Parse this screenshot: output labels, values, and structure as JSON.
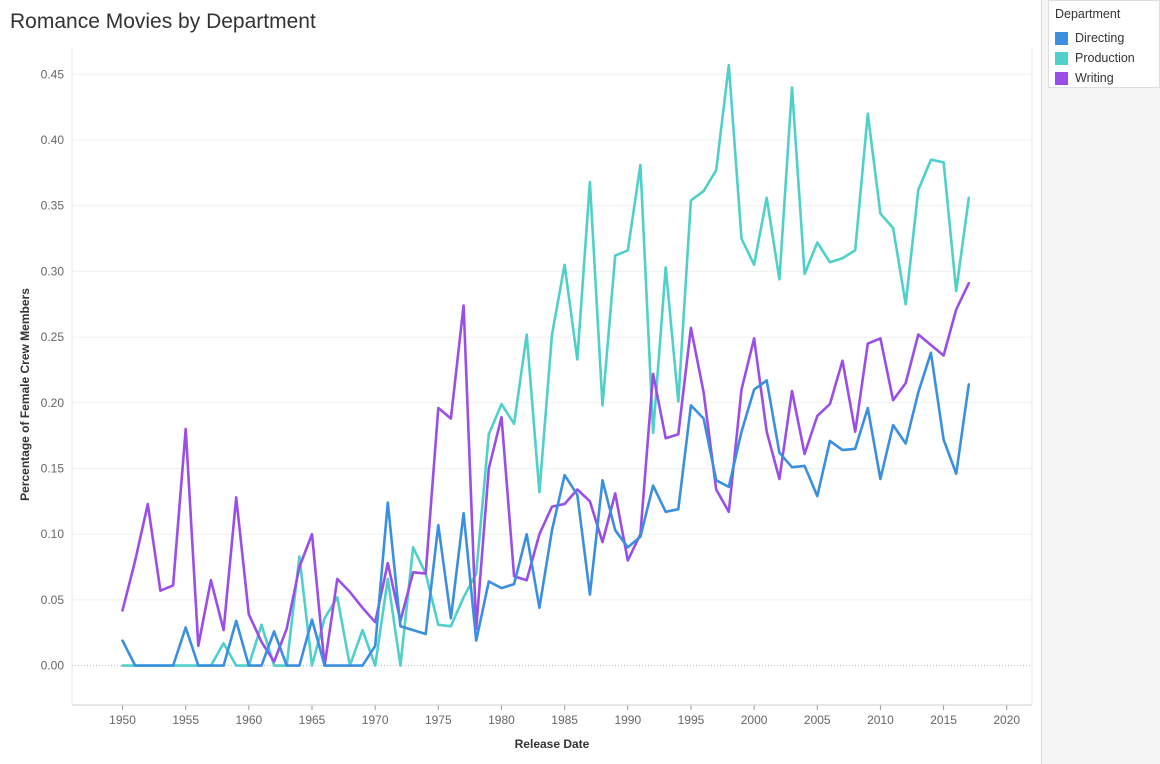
{
  "title": "Romance Movies by Department",
  "legend": {
    "title": "Department",
    "items": [
      {
        "label": "Directing",
        "color": "#3a8fe0"
      },
      {
        "label": "Production",
        "color": "#4fd0c9"
      },
      {
        "label": "Writing",
        "color": "#9b4de8"
      }
    ]
  },
  "chart_data": {
    "type": "line",
    "title": "Romance Movies by Department",
    "xlabel": "Release Date",
    "ylabel": "Percentage of Female Crew Members",
    "xlim": [
      1946,
      2022
    ],
    "ylim": [
      -0.03,
      0.47
    ],
    "x_ticks": [
      "1950",
      "1955",
      "1960",
      "1965",
      "1970",
      "1975",
      "1980",
      "1985",
      "1990",
      "1995",
      "2000",
      "2005",
      "2010",
      "2015",
      "2020"
    ],
    "y_ticks": [
      "0.00",
      "0.05",
      "0.10",
      "0.15",
      "0.20",
      "0.25",
      "0.30",
      "0.35",
      "0.40",
      "0.45"
    ],
    "grid": true,
    "legend_position": "top-right",
    "series": [
      {
        "name": "Directing",
        "color": "#3a8fe0",
        "x": [
          1950,
          1951,
          1952,
          1953,
          1954,
          1955,
          1956,
          1957,
          1958,
          1959,
          1960,
          1961,
          1962,
          1963,
          1964,
          1965,
          1966,
          1967,
          1968,
          1969,
          1970,
          1971,
          1972,
          1973,
          1974,
          1975,
          1976,
          1977,
          1978,
          1979,
          1980,
          1981,
          1982,
          1983,
          1984,
          1985,
          1986,
          1987,
          1988,
          1989,
          1990,
          1991,
          1992,
          1993,
          1994,
          1995,
          1996,
          1997,
          1998,
          1999,
          2000,
          2001,
          2002,
          2003,
          2004,
          2005,
          2006,
          2007,
          2008,
          2009,
          2010,
          2011,
          2012,
          2013,
          2014,
          2015,
          2016,
          2017
        ],
        "values": [
          0.019,
          0.0,
          0.0,
          0.0,
          0.0,
          0.029,
          0.0,
          0.0,
          0.0,
          0.034,
          0.0,
          0.0,
          0.026,
          0.0,
          0.0,
          0.035,
          0.0,
          0.0,
          0.0,
          0.0,
          0.015,
          0.124,
          0.03,
          0.027,
          0.024,
          0.107,
          0.036,
          0.116,
          0.019,
          0.064,
          0.059,
          0.062,
          0.1,
          0.044,
          0.103,
          0.145,
          0.13,
          0.054,
          0.141,
          0.103,
          0.09,
          0.098,
          0.137,
          0.117,
          0.119,
          0.198,
          0.188,
          0.141,
          0.136,
          0.178,
          0.21,
          0.217,
          0.162,
          0.151,
          0.152,
          0.129,
          0.171,
          0.164,
          0.165,
          0.196,
          0.142,
          0.183,
          0.169,
          0.208,
          0.238,
          0.172,
          0.146,
          0.214
        ]
      },
      {
        "name": "Production",
        "color": "#4fd0c9",
        "x": [
          1950,
          1951,
          1952,
          1953,
          1954,
          1955,
          1956,
          1957,
          1958,
          1959,
          1960,
          1961,
          1962,
          1963,
          1964,
          1965,
          1966,
          1967,
          1968,
          1969,
          1970,
          1971,
          1972,
          1973,
          1974,
          1975,
          1976,
          1977,
          1978,
          1979,
          1980,
          1981,
          1982,
          1983,
          1984,
          1985,
          1986,
          1987,
          1988,
          1989,
          1990,
          1991,
          1992,
          1993,
          1994,
          1995,
          1996,
          1997,
          1998,
          1999,
          2000,
          2001,
          2002,
          2003,
          2004,
          2005,
          2006,
          2007,
          2008,
          2009,
          2010,
          2011,
          2012,
          2013,
          2014,
          2015,
          2016,
          2017
        ],
        "values": [
          0.0,
          0.0,
          0.0,
          0.0,
          0.0,
          0.0,
          0.0,
          0.0,
          0.017,
          0.0,
          0.0,
          0.031,
          0.0,
          0.0,
          0.083,
          0.0,
          0.036,
          0.052,
          0.0,
          0.027,
          0.0,
          0.066,
          0.0,
          0.09,
          0.07,
          0.031,
          0.03,
          0.052,
          0.07,
          0.176,
          0.199,
          0.184,
          0.252,
          0.132,
          0.252,
          0.305,
          0.233,
          0.368,
          0.198,
          0.312,
          0.316,
          0.381,
          0.177,
          0.303,
          0.201,
          0.354,
          0.361,
          0.377,
          0.457,
          0.325,
          0.305,
          0.356,
          0.294,
          0.44,
          0.298,
          0.322,
          0.307,
          0.31,
          0.316,
          0.42,
          0.344,
          0.333,
          0.275,
          0.362,
          0.385,
          0.383,
          0.285,
          0.356
        ]
      },
      {
        "name": "Writing",
        "color": "#9b4de8",
        "x": [
          1950,
          1951,
          1952,
          1953,
          1954,
          1955,
          1956,
          1957,
          1958,
          1959,
          1960,
          1961,
          1962,
          1963,
          1964,
          1965,
          1966,
          1967,
          1968,
          1969,
          1970,
          1971,
          1972,
          1973,
          1974,
          1975,
          1976,
          1977,
          1978,
          1979,
          1980,
          1981,
          1982,
          1983,
          1984,
          1985,
          1986,
          1987,
          1988,
          1989,
          1990,
          1991,
          1992,
          1993,
          1994,
          1995,
          1996,
          1997,
          1998,
          1999,
          2000,
          2001,
          2002,
          2003,
          2004,
          2005,
          2006,
          2007,
          2008,
          2009,
          2010,
          2011,
          2012,
          2013,
          2014,
          2015,
          2016,
          2017
        ],
        "values": [
          0.042,
          0.08,
          0.123,
          0.057,
          0.061,
          0.18,
          0.015,
          0.065,
          0.027,
          0.128,
          0.039,
          0.018,
          0.003,
          0.028,
          0.075,
          0.1,
          0.0,
          0.066,
          0.056,
          0.044,
          0.033,
          0.078,
          0.034,
          0.071,
          0.07,
          0.196,
          0.188,
          0.274,
          0.028,
          0.15,
          0.189,
          0.068,
          0.065,
          0.1,
          0.121,
          0.123,
          0.134,
          0.125,
          0.094,
          0.131,
          0.08,
          0.1,
          0.222,
          0.173,
          0.176,
          0.257,
          0.208,
          0.134,
          0.117,
          0.21,
          0.249,
          0.178,
          0.142,
          0.209,
          0.161,
          0.19,
          0.199,
          0.232,
          0.178,
          0.245,
          0.249,
          0.202,
          0.215,
          0.252,
          0.244,
          0.236,
          0.271,
          0.291
        ]
      }
    ]
  }
}
